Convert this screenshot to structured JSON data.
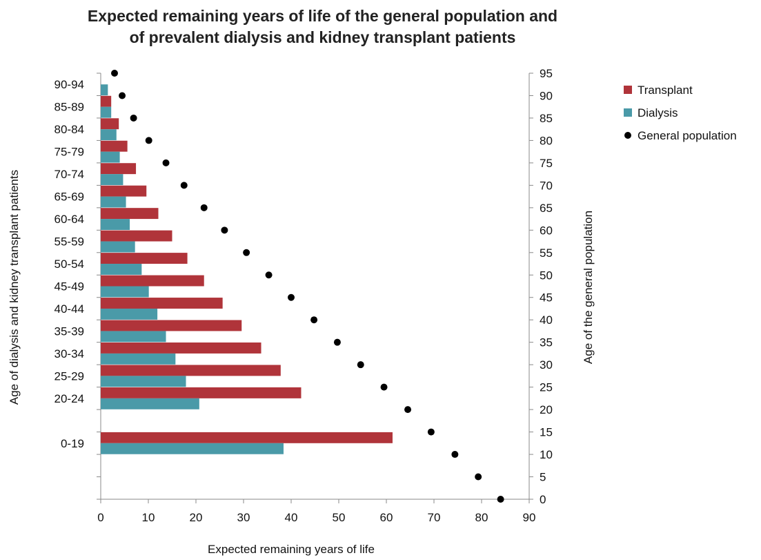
{
  "chart_data": {
    "type": "bar",
    "orientation": "horizontal",
    "title": "Expected remaining years of life of the general population and of prevalent dialysis and kidney transplant patients",
    "title_lines": [
      "Expected remaining years of life of the general population and",
      "of prevalent dialysis and kidney transplant patients"
    ],
    "xlabel": "Expected remaining years of life",
    "ylabel_left": "Age of dialysis  and  kidney transplant patients",
    "ylabel_right": "Age of the general population",
    "xlim": [
      0,
      90
    ],
    "x_ticks": [
      0,
      10,
      20,
      30,
      40,
      50,
      60,
      70,
      80,
      90
    ],
    "ylim_right": [
      0,
      95
    ],
    "y_ticks_right": [
      0,
      5,
      10,
      15,
      20,
      25,
      30,
      35,
      40,
      45,
      50,
      55,
      60,
      65,
      70,
      75,
      80,
      85,
      90,
      95
    ],
    "categories": [
      "0-19",
      "20-24",
      "25-29",
      "30-34",
      "35-39",
      "40-44",
      "45-49",
      "50-54",
      "55-59",
      "60-64",
      "65-69",
      "70-74",
      "75-79",
      "80-84",
      "85-89",
      "90-94"
    ],
    "category_y": [
      12.5,
      22.5,
      27.5,
      32.5,
      37.5,
      42.5,
      47.5,
      52.5,
      57.5,
      62.5,
      67.5,
      72.5,
      77.5,
      82.5,
      87.5,
      92.5
    ],
    "series": [
      {
        "name": "Transplant",
        "color": "#b0343a",
        "values": [
          61.3,
          42.1,
          37.8,
          33.7,
          29.6,
          25.6,
          21.7,
          18.2,
          15.0,
          12.1,
          9.6,
          7.4,
          5.6,
          3.8,
          2.2,
          null
        ]
      },
      {
        "name": "Dialysis",
        "color": "#4a9aa8",
        "values": [
          38.4,
          20.7,
          17.9,
          15.7,
          13.7,
          11.9,
          10.1,
          8.6,
          7.2,
          6.1,
          5.3,
          4.7,
          4.0,
          3.3,
          2.2,
          1.5
        ]
      },
      {
        "name": "General population",
        "color": "#000000",
        "marker": "circle",
        "x": [
          84.0,
          79.3,
          74.4,
          69.4,
          64.5,
          59.5,
          54.6,
          49.7,
          44.8,
          40.0,
          35.3,
          30.6,
          26.0,
          21.7,
          17.5,
          13.7,
          10.1,
          6.9,
          4.5,
          2.9
        ],
        "y": [
          0,
          5,
          10,
          15,
          20,
          25,
          30,
          35,
          40,
          45,
          50,
          55,
          60,
          65,
          70,
          75,
          80,
          85,
          90,
          95
        ]
      }
    ],
    "legend_position": "right"
  }
}
